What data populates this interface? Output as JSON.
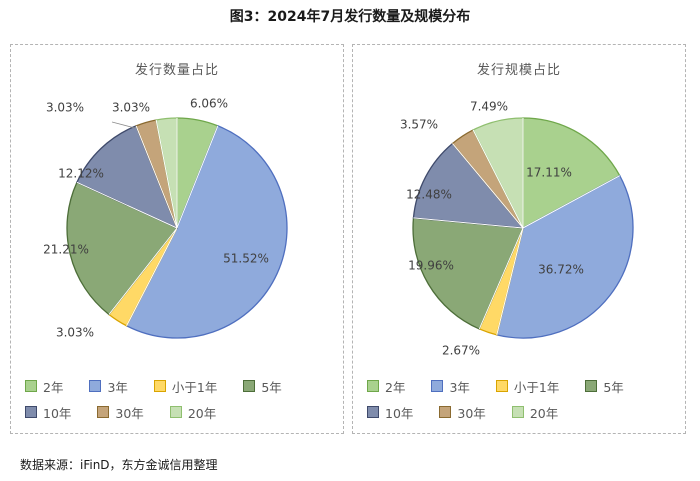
{
  "figure_title": "图3：2024年7月发行数量及规模分布",
  "source": "数据来源：iFinD，东方金诚信用整理",
  "categories": [
    "2年",
    "3年",
    "小于1年",
    "5年",
    "10年",
    "30年",
    "20年"
  ],
  "colors": {
    "2年": "#a9d18e",
    "3年": "#8faadc",
    "小于1年": "#ffd966",
    "5年": "#8aa876",
    "10年": "#7f8cac",
    "30年": "#c4a47a",
    "20年": "#c6e0b4"
  },
  "edge_colors": {
    "2年": "#6fa74a",
    "3年": "#4f6fbf",
    "小于1年": "#d9a400",
    "5年": "#4d6e39",
    "10年": "#3f4a6b",
    "30年": "#8a6a30",
    "20年": "#8fbf6f"
  },
  "chart_data": [
    {
      "type": "pie",
      "title": "发行数量占比",
      "slices": [
        {
          "label": "2年",
          "value": 6.06,
          "text": "6.06%"
        },
        {
          "label": "3年",
          "value": 51.52,
          "text": "51.52%"
        },
        {
          "label": "小于1年",
          "value": 3.03,
          "text": "3.03%"
        },
        {
          "label": "5年",
          "value": 21.21,
          "text": "21.21%"
        },
        {
          "label": "10年",
          "value": 12.12,
          "text": "12.12%"
        },
        {
          "label": "30年",
          "value": 3.03,
          "text": "3.03%"
        },
        {
          "label": "20年",
          "value": 3.03,
          "text": "3.03%"
        }
      ],
      "legend": "bottom"
    },
    {
      "type": "pie",
      "title": "发行规模占比",
      "slices": [
        {
          "label": "2年",
          "value": 17.11,
          "text": "17.11%"
        },
        {
          "label": "3年",
          "value": 36.72,
          "text": "36.72%"
        },
        {
          "label": "小于1年",
          "value": 2.67,
          "text": "2.67%"
        },
        {
          "label": "5年",
          "value": 19.96,
          "text": "19.96%"
        },
        {
          "label": "10年",
          "value": 12.48,
          "text": "12.48%"
        },
        {
          "label": "30年",
          "value": 3.57,
          "text": "3.57%"
        },
        {
          "label": "20年",
          "value": 7.49,
          "text": "7.49%"
        }
      ],
      "legend": "bottom"
    }
  ]
}
